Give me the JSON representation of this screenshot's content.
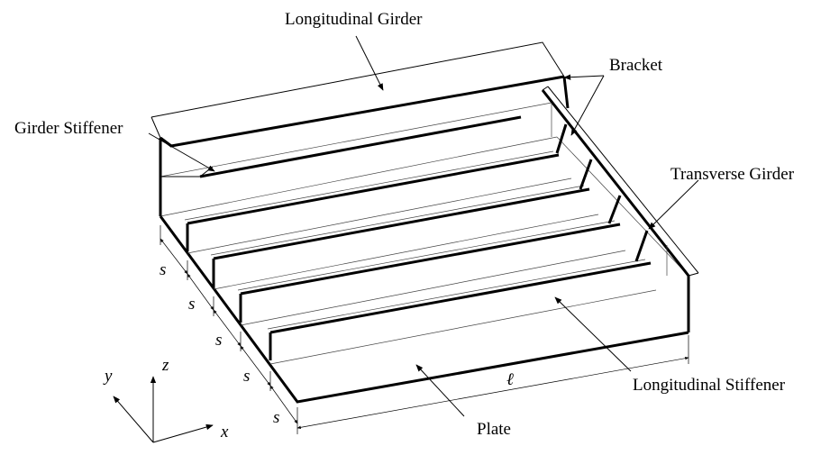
{
  "labels": {
    "longitudinal_girder": "Longitudinal Girder",
    "bracket": "Bracket",
    "girder_stiffener": "Girder Stiffener",
    "transverse_girder": "Transverse Girder",
    "longitudinal_stiffener": "Longitudinal Stiffener",
    "plate": "Plate"
  },
  "dimensions": {
    "spacing": [
      "s",
      "s",
      "s",
      "s",
      "s"
    ],
    "length": "ℓ"
  },
  "axes": {
    "x": "x",
    "y": "y",
    "z": "z"
  }
}
